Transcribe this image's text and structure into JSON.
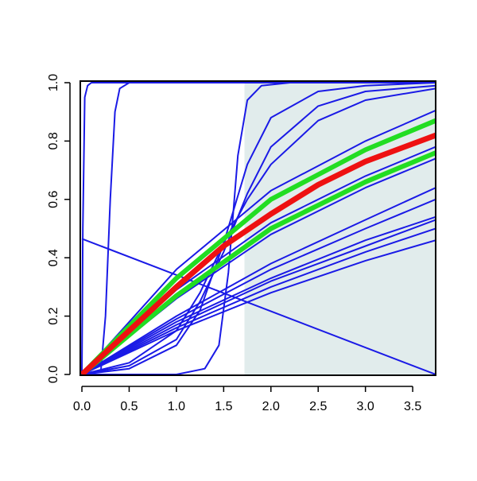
{
  "chart_data": {
    "type": "line",
    "xlim": [
      -0.017,
      3.743
    ],
    "ylim": [
      0,
      1
    ],
    "xticks": [
      {
        "value": 0,
        "label": "0.0"
      },
      0.5,
      {
        "value": 1,
        "label": "1.0"
      },
      1.5,
      {
        "value": 2,
        "label": "2.0"
      },
      2.5,
      {
        "value": 3,
        "label": "3.0"
      },
      3.5
    ],
    "yticks": [
      {
        "value": 0,
        "label": "0.0"
      },
      0.2,
      0.4,
      0.6,
      0.8,
      {
        "value": 1,
        "label": "1.0"
      }
    ],
    "shaded_region": {
      "xlim": [
        1.72,
        3.743
      ],
      "color": "#e1ecec"
    },
    "series": [
      {
        "color": "#1a1ae6",
        "width": 2,
        "x": [
          0,
          0.01,
          0.03,
          0.06,
          0.1,
          3.743
        ],
        "values": [
          0,
          0.5,
          0.95,
          0.99,
          1,
          1
        ]
      },
      {
        "color": "#1a1ae6",
        "width": 2,
        "x": [
          0,
          0.2,
          0.25,
          0.3,
          0.35,
          0.4,
          0.5,
          3.743
        ],
        "values": [
          0,
          0.01,
          0.2,
          0.6,
          0.9,
          0.98,
          1,
          1
        ]
      },
      {
        "color": "#1a1ae6",
        "width": 2,
        "x": [
          0,
          3.743
        ],
        "values": [
          0.465,
          0
        ]
      },
      {
        "color": "#1a1ae6",
        "width": 2,
        "x": [
          0,
          1,
          1.3,
          1.45,
          1.55,
          1.65,
          1.75,
          1.9,
          2.2,
          3.743
        ],
        "values": [
          0,
          0,
          0.02,
          0.1,
          0.35,
          0.75,
          0.94,
          0.99,
          1,
          1
        ]
      },
      {
        "color": "#1a1ae6",
        "width": 2,
        "x": [
          0,
          0.5,
          1,
          1.25,
          1.5,
          1.75,
          2,
          2.5,
          3,
          3.743
        ],
        "values": [
          0,
          0.02,
          0.1,
          0.22,
          0.45,
          0.72,
          0.88,
          0.97,
          0.99,
          1
        ]
      },
      {
        "color": "#1a1ae6",
        "width": 2,
        "x": [
          0,
          0.5,
          1,
          1.25,
          1.5,
          1.75,
          2,
          2.5,
          3,
          3.743
        ],
        "values": [
          0,
          0.03,
          0.12,
          0.25,
          0.42,
          0.62,
          0.78,
          0.92,
          0.97,
          0.99
        ]
      },
      {
        "color": "#1a1ae6",
        "width": 2,
        "x": [
          0,
          0.5,
          1,
          1.25,
          1.5,
          1.75,
          2,
          2.5,
          3,
          3.743
        ],
        "values": [
          0,
          0.04,
          0.15,
          0.28,
          0.45,
          0.6,
          0.72,
          0.87,
          0.94,
          0.98
        ]
      },
      {
        "color": "#1a1ae6",
        "width": 2,
        "x": [
          0,
          1,
          2,
          3,
          3.743
        ],
        "values": [
          0,
          0.36,
          0.63,
          0.8,
          0.905
        ]
      },
      {
        "color": "#1a1ae6",
        "width": 2,
        "x": [
          0,
          1,
          2,
          3,
          3.743
        ],
        "values": [
          0,
          0.29,
          0.52,
          0.68,
          0.78
        ]
      },
      {
        "color": "#1a1ae6",
        "width": 2,
        "x": [
          0,
          1,
          2,
          3,
          3.743
        ],
        "values": [
          0,
          0.26,
          0.48,
          0.64,
          0.74
        ]
      },
      {
        "color": "#1a1ae6",
        "width": 2,
        "x": [
          0,
          1,
          2,
          3,
          3.743
        ],
        "values": [
          0,
          0.2,
          0.38,
          0.53,
          0.64
        ]
      },
      {
        "color": "#1a1ae6",
        "width": 2,
        "x": [
          0,
          1,
          2,
          3,
          3.743
        ],
        "values": [
          0,
          0.19,
          0.36,
          0.5,
          0.6
        ]
      },
      {
        "color": "#1a1ae6",
        "width": 2,
        "x": [
          0,
          1,
          2,
          3,
          3.743
        ],
        "values": [
          0,
          0.18,
          0.33,
          0.46,
          0.54
        ]
      },
      {
        "color": "#1a1ae6",
        "width": 2,
        "x": [
          0,
          1,
          2,
          3,
          3.743
        ],
        "values": [
          0,
          0.17,
          0.32,
          0.44,
          0.53
        ]
      },
      {
        "color": "#1a1ae6",
        "width": 2,
        "x": [
          0,
          1,
          2,
          3,
          3.743
        ],
        "values": [
          0,
          0.16,
          0.3,
          0.42,
          0.5
        ]
      },
      {
        "color": "#1a1ae6",
        "width": 2,
        "x": [
          0,
          1,
          2,
          3,
          3.743
        ],
        "values": [
          0,
          0.15,
          0.28,
          0.39,
          0.46
        ]
      },
      {
        "color": "#22dd22",
        "width": 6,
        "x": [
          0,
          1,
          2,
          3,
          3.743
        ],
        "values": [
          0,
          0.33,
          0.6,
          0.77,
          0.87
        ]
      },
      {
        "color": "#22dd22",
        "width": 6,
        "x": [
          0,
          1,
          2,
          3,
          3.743
        ],
        "values": [
          0,
          0.27,
          0.5,
          0.66,
          0.76
        ]
      },
      {
        "color": "#ee1111",
        "width": 7,
        "x": [
          0,
          1,
          1.5,
          2,
          2.5,
          3,
          3.743
        ],
        "values": [
          0,
          0.3,
          0.44,
          0.55,
          0.65,
          0.73,
          0.82
        ]
      }
    ]
  }
}
